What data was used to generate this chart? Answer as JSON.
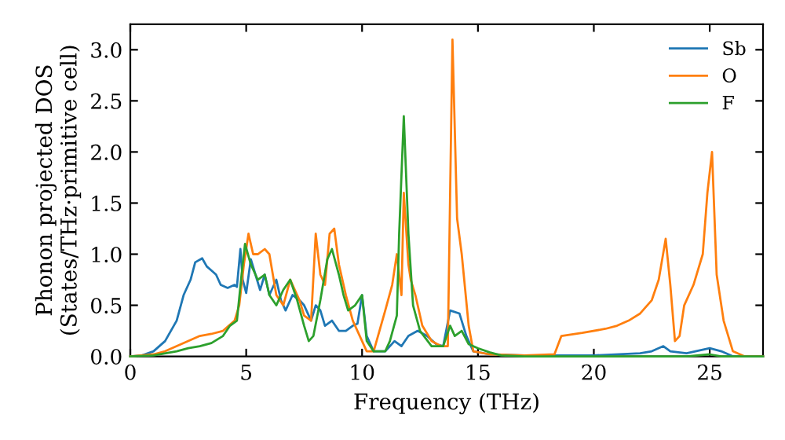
{
  "chart_data": {
    "type": "line",
    "xlabel": "Frequency (THz)",
    "ylabel": "Phonon projected DOS\n(States/THz·primitive cell)",
    "xlim": [
      0,
      27.3
    ],
    "ylim": [
      0,
      3.25
    ],
    "xticks": [
      0,
      5,
      10,
      15,
      20,
      25
    ],
    "yticks": [
      {
        "value": 0,
        "label": "0.0"
      },
      0.5,
      {
        "value": 1,
        "label": "1.0"
      },
      1.5,
      {
        "value": 2,
        "label": "2.0"
      },
      2.5,
      {
        "value": 3,
        "label": "3.0"
      }
    ],
    "legend": "top right",
    "grid": false,
    "marker": "none",
    "line_style": "solid",
    "series": [
      {
        "name": "Sb",
        "color": "#1f77b4",
        "x": [
          0,
          0.5,
          1,
          1.5,
          2,
          2.3,
          2.6,
          2.8,
          3.1,
          3.3,
          3.5,
          3.7,
          3.9,
          4.2,
          4.5,
          4.6,
          4.75,
          4.85,
          5.0,
          5.2,
          5.4,
          5.6,
          5.8,
          6.0,
          6.3,
          6.5,
          6.7,
          7.0,
          7.3,
          7.5,
          7.8,
          8.0,
          8.2,
          8.4,
          8.7,
          9.0,
          9.3,
          9.6,
          9.8,
          10.0,
          10.2,
          10.5,
          11,
          11.4,
          11.7,
          12,
          12.4,
          12.8,
          13.2,
          13.5,
          13.8,
          14.2,
          14.5,
          14.8,
          15.5,
          17,
          20,
          22,
          22.5,
          23,
          23.3,
          24,
          25,
          25.5,
          26,
          27.3
        ],
        "values": [
          0,
          0.01,
          0.05,
          0.15,
          0.35,
          0.6,
          0.75,
          0.92,
          0.96,
          0.88,
          0.84,
          0.8,
          0.7,
          0.67,
          0.7,
          0.68,
          1.05,
          0.75,
          0.62,
          0.95,
          0.8,
          0.65,
          0.8,
          0.6,
          0.75,
          0.55,
          0.45,
          0.6,
          0.55,
          0.5,
          0.35,
          0.5,
          0.45,
          0.3,
          0.35,
          0.25,
          0.25,
          0.3,
          0.32,
          0.6,
          0.2,
          0.05,
          0.05,
          0.15,
          0.1,
          0.2,
          0.25,
          0.2,
          0.12,
          0.1,
          0.45,
          0.42,
          0.2,
          0.05,
          0.02,
          0.01,
          0.01,
          0.03,
          0.05,
          0.1,
          0.05,
          0.03,
          0.08,
          0.05,
          0.0,
          0
        ]
      },
      {
        "name": "O",
        "color": "#ff7f0e",
        "x": [
          0,
          1,
          1.5,
          2,
          2.5,
          3,
          3.5,
          4,
          4.5,
          4.7,
          4.9,
          5.1,
          5.3,
          5.5,
          5.8,
          6.0,
          6.3,
          6.6,
          6.9,
          7.1,
          7.3,
          7.5,
          7.8,
          8.0,
          8.2,
          8.4,
          8.6,
          8.8,
          9.0,
          9.3,
          9.6,
          9.9,
          10.2,
          10.5,
          11,
          11.3,
          11.5,
          11.7,
          11.8,
          12.0,
          12.1,
          12.3,
          12.6,
          13.0,
          13.4,
          13.7,
          13.9,
          14.1,
          14.3,
          14.6,
          14.8,
          15.5,
          17,
          18.3,
          18.6,
          19.5,
          20.5,
          21,
          21.5,
          22,
          22.5,
          22.8,
          23.1,
          23.3,
          23.5,
          23.7,
          23.9,
          24.3,
          24.7,
          24.9,
          25.1,
          25.3,
          25.6,
          26.0,
          26.5,
          27.3
        ],
        "values": [
          0,
          0.02,
          0.05,
          0.1,
          0.15,
          0.2,
          0.22,
          0.25,
          0.35,
          0.5,
          0.9,
          1.2,
          1.0,
          1.0,
          1.05,
          1.0,
          0.6,
          0.5,
          0.75,
          0.65,
          0.55,
          0.4,
          0.35,
          1.2,
          0.8,
          0.7,
          1.2,
          1.25,
          0.9,
          0.6,
          0.35,
          0.2,
          0.05,
          0.05,
          0.45,
          0.7,
          1.0,
          0.6,
          1.6,
          0.9,
          0.75,
          0.6,
          0.3,
          0.15,
          0.1,
          0.1,
          3.1,
          1.35,
          1.0,
          0.3,
          0.05,
          0.02,
          0.01,
          0.02,
          0.2,
          0.23,
          0.27,
          0.3,
          0.35,
          0.42,
          0.55,
          0.75,
          1.15,
          0.7,
          0.15,
          0.2,
          0.5,
          0.7,
          1.0,
          1.6,
          2.0,
          0.8,
          0.35,
          0.05,
          0.0,
          0
        ]
      },
      {
        "name": "F",
        "color": "#2ca02c",
        "x": [
          0,
          1,
          2,
          2.5,
          3,
          3.5,
          4,
          4.3,
          4.6,
          4.8,
          4.95,
          5.2,
          5.5,
          5.8,
          6.0,
          6.3,
          6.6,
          6.9,
          7.2,
          7.5,
          7.7,
          7.9,
          8.2,
          8.5,
          8.7,
          9.0,
          9.2,
          9.4,
          9.7,
          10.0,
          10.2,
          10.5,
          11,
          11.2,
          11.5,
          11.6,
          11.8,
          12.0,
          12.2,
          12.5,
          13,
          13.5,
          13.8,
          14.0,
          14.3,
          14.6,
          15,
          15.5,
          16,
          17,
          24,
          25,
          25.5,
          27.3
        ],
        "values": [
          0,
          0.01,
          0.05,
          0.08,
          0.1,
          0.13,
          0.2,
          0.3,
          0.35,
          0.8,
          1.1,
          0.9,
          0.75,
          0.8,
          0.6,
          0.5,
          0.65,
          0.75,
          0.55,
          0.3,
          0.15,
          0.2,
          0.55,
          0.95,
          1.05,
          0.8,
          0.6,
          0.45,
          0.5,
          0.6,
          0.15,
          0.05,
          0.05,
          0.15,
          0.4,
          1.2,
          2.35,
          1.2,
          0.5,
          0.25,
          0.1,
          0.1,
          0.3,
          0.2,
          0.25,
          0.12,
          0.08,
          0.04,
          0.01,
          0,
          0,
          0.02,
          0,
          0
        ]
      }
    ]
  }
}
